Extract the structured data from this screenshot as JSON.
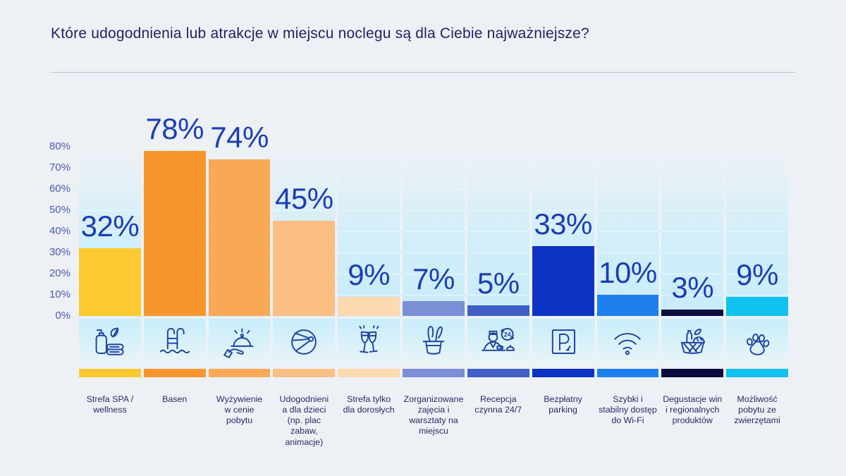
{
  "header": {
    "title": "Które udogodnienia lub atrakcje w miejscu noclegu są dla Ciebie najważniejsze?"
  },
  "palette": {
    "page_background": "#edf1f6",
    "title_color": "#22225f",
    "value_label_color": "#1b3db5",
    "axis_label_color": "#4f58ad",
    "gridline_color": "#d6ebf6",
    "column_tint": "#c8ecfa",
    "icon_stroke": "#1e43a0"
  },
  "chart_data": {
    "type": "bar",
    "title": "Które udogodnienia lub atrakcje w miejscu noclegu są dla Ciebie najważniejsze?",
    "xlabel": "",
    "ylabel": "",
    "ylim": [
      0,
      80
    ],
    "grid": true,
    "legend": "none",
    "y_ticks": [
      "80%",
      "70%",
      "60%",
      "50%",
      "40%",
      "30%",
      "20%",
      "10%",
      "0%"
    ],
    "categories": [
      "Strefa SPA /\nwellness",
      "Basen",
      "Wyżywienie\nw cenie\npobytu",
      "Udogodnieni\na dla dzieci\n(np. plac\nzabaw,\nanimacje)",
      "Strefa tylko\ndla dorosłych",
      "Zorganizowane\nzajęcia i\nwarsztaty na\nmiejscu",
      "Recepcja\nczynna 24/7",
      "Bezpłatny\nparking",
      "Szybki i\nstabilny dostęp\ndo Wi-Fi",
      "Degustacje win\ni regionalnych\nproduktów",
      "Możliwość\npobytu ze\nzwierzętami"
    ],
    "values": [
      32,
      78,
      74,
      45,
      9,
      7,
      5,
      33,
      10,
      3,
      9
    ],
    "value_labels": [
      "32%",
      "78%",
      "74%",
      "45%",
      "9%",
      "7%",
      "5%",
      "33%",
      "10%",
      "3%",
      "9%"
    ],
    "colors": [
      "#fbca30",
      "#f7962f",
      "#f9a857",
      "#fbbf84",
      "#fdd9b0",
      "#7b8fd6",
      "#4060c6",
      "#0d33c4",
      "#1d80ee",
      "#0b0b3e",
      "#10c2f0"
    ],
    "icons": [
      "spa-icon",
      "pool-icon",
      "food-cloche-icon",
      "beach-ball-icon",
      "champagne-glasses-icon",
      "magic-hat-icon",
      "reception-24-icon",
      "parking-icon",
      "wifi-icon",
      "product-basket-icon",
      "paw-icon"
    ],
    "icon_texts": {
      "reception_badge": "24"
    }
  }
}
